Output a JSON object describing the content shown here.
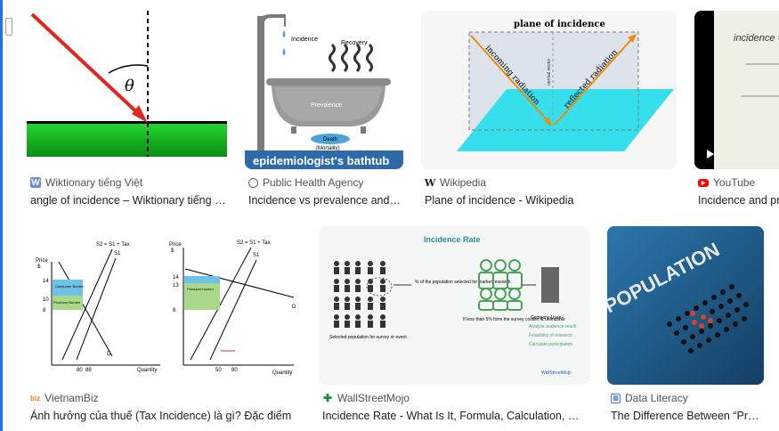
{
  "results": [
    {
      "source": "Wiktionary tiếng Việt",
      "title": "angle of incidence – Wiktionary tiếng Việt",
      "icon": "wiktionary-icon",
      "thumb_text": [
        "θ"
      ]
    },
    {
      "source": "Public Health Agency",
      "title": "Incidence vs prevalence and epidemiologist's bathtub",
      "icon": "globe-icon",
      "thumb_text": [
        "Incidence",
        "Recovery",
        "Prevalence",
        "Death",
        "(Mortality)",
        "epidemiologist's bathtub"
      ]
    },
    {
      "source": "Wikipedia",
      "title": "Plane of incidence - Wikipedia",
      "icon": "wikipedia-icon",
      "thumb_text": [
        "plane of incidence",
        "incoming radiation",
        "reflected radiation",
        "normal vector"
      ]
    },
    {
      "source": "YouTube",
      "title": "Incidence and prevalence",
      "icon": "youtube-icon",
      "thumb_text": [
        "incidence ="
      ]
    },
    {
      "source": "VietnamBiz",
      "title": "Ảnh hưởng của thuế (Tax Incidence) là gì? Đặc điểm",
      "icon": "vietnambiz-icon",
      "thumb_text": [
        "Price",
        "$",
        "S2 = S1 + Tax",
        "S1",
        "14",
        "10",
        "8",
        "Consumer Burden",
        "Producer Burden",
        "D",
        "80",
        "88",
        "Quantity",
        "Price",
        "$",
        "S2 = S1 + Tax",
        "S1",
        "14",
        "13",
        "8",
        "Consumer Burden",
        "Producer burden",
        "D",
        "50",
        "80",
        "Quantity"
      ]
    },
    {
      "source": "WallStreetMojo",
      "title": "Incidence Rate - What Is It, Formula, Calculation, Examples",
      "icon": "wallstreetmojo-icon",
      "thumb_text": [
        "Incidence Rate",
        "% of the population selected for market research",
        "Selected population for survey or event",
        "If less than 5% form the survey costlier & unfeasible",
        "Company Uses -",
        "Analyze audience reach",
        "Feasibility of research",
        "Calculate participation",
        "WallStreetMojo"
      ]
    },
    {
      "source": "Data Literacy",
      "title": "The Difference Between “Prevalence” and “Incidence”",
      "icon": "data-literacy-icon",
      "thumb_text": [
        "POPULATION"
      ]
    }
  ]
}
